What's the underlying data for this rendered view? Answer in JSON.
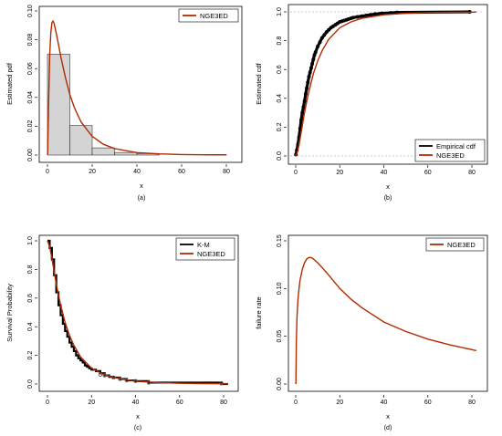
{
  "colors": {
    "model": "#b22a00",
    "empirical": "#000000",
    "hist_fill": "#d4d4d4",
    "ref_line": "#9a9a9a"
  },
  "chart_data": [
    {
      "id": "a",
      "type": "histogram",
      "caption": "(a)",
      "xlabel": "x",
      "ylabel": "Estimated pdf",
      "xlim": [
        0,
        80
      ],
      "ylim": [
        0,
        0.1
      ],
      "xticks": [
        0,
        20,
        40,
        60,
        80
      ],
      "yticks": [
        0.0,
        0.02,
        0.04,
        0.06,
        0.08,
        0.1
      ],
      "ytick_labels": [
        "0.00",
        "0.02",
        "0.04",
        "0.06",
        "0.08",
        "0.10"
      ],
      "legend": {
        "position": "top-right",
        "entries": [
          {
            "label": "NGE3ED",
            "color": "#b22a00"
          }
        ]
      },
      "bins": [
        {
          "x0": 0,
          "x1": 10,
          "density": 0.07
        },
        {
          "x0": 10,
          "x1": 20,
          "density": 0.0205
        },
        {
          "x0": 20,
          "x1": 30,
          "density": 0.005
        },
        {
          "x0": 30,
          "x1": 40,
          "density": 0.0018
        },
        {
          "x0": 40,
          "x1": 50,
          "density": 0.001
        },
        {
          "x0": 50,
          "x1": 60,
          "density": 0.0
        },
        {
          "x0": 60,
          "x1": 70,
          "density": 0.0
        },
        {
          "x0": 70,
          "x1": 80,
          "density": 0.0004
        }
      ],
      "series": [
        {
          "name": "NGE3ED",
          "color": "#b22a00",
          "x": [
            0.1,
            0.5,
            1,
            1.5,
            2,
            2.5,
            3,
            4,
            5,
            6,
            8,
            10,
            12,
            15,
            20,
            25,
            30,
            40,
            50,
            60,
            70,
            80
          ],
          "y": [
            0.0,
            0.035,
            0.07,
            0.085,
            0.092,
            0.093,
            0.091,
            0.084,
            0.076,
            0.068,
            0.054,
            0.042,
            0.033,
            0.023,
            0.013,
            0.0075,
            0.0045,
            0.0017,
            0.0008,
            0.0004,
            0.0002,
            0.0001
          ]
        }
      ]
    },
    {
      "id": "b",
      "type": "line",
      "caption": "(b)",
      "xlabel": "x",
      "ylabel": "Estimated cdf",
      "xlim": [
        0,
        80
      ],
      "ylim": [
        0,
        1
      ],
      "xticks": [
        0,
        20,
        40,
        60,
        80
      ],
      "yticks": [
        0.0,
        0.2,
        0.4,
        0.6,
        0.8,
        1.0
      ],
      "ytick_labels": [
        "0.0",
        "0.2",
        "0.4",
        "0.6",
        "0.8",
        "1.0"
      ],
      "ref_lines": [
        0,
        1
      ],
      "legend": {
        "position": "bottom-right",
        "entries": [
          {
            "label": "Empirical cdf",
            "color": "#000000"
          },
          {
            "label": "NGE3ED",
            "color": "#b22a00"
          }
        ]
      },
      "series": [
        {
          "name": "Empirical cdf",
          "color": "#000000",
          "x": [
            0.1,
            0.5,
            1,
            1.5,
            2,
            2.5,
            3,
            3.5,
            4,
            4.5,
            5,
            5.5,
            6,
            6.5,
            7,
            7.5,
            8,
            8.5,
            9,
            10,
            11,
            12,
            13,
            14,
            15,
            16,
            17,
            18,
            19,
            20,
            21,
            22,
            23,
            24,
            25,
            26,
            28,
            30,
            32,
            34,
            36,
            39,
            43,
            46,
            79
          ],
          "y": [
            0.01,
            0.04,
            0.08,
            0.13,
            0.19,
            0.25,
            0.3,
            0.34,
            0.38,
            0.43,
            0.47,
            0.51,
            0.55,
            0.58,
            0.61,
            0.64,
            0.67,
            0.7,
            0.72,
            0.76,
            0.79,
            0.82,
            0.84,
            0.86,
            0.875,
            0.89,
            0.9,
            0.91,
            0.92,
            0.93,
            0.935,
            0.94,
            0.945,
            0.95,
            0.955,
            0.96,
            0.965,
            0.97,
            0.975,
            0.98,
            0.985,
            0.99,
            0.993,
            0.996,
            1.0
          ]
        },
        {
          "name": "NGE3ED",
          "color": "#b22a00",
          "x": [
            0,
            1,
            2,
            3,
            4,
            5,
            6,
            8,
            10,
            12,
            15,
            20,
            25,
            30,
            40,
            50,
            60,
            70,
            80,
            82
          ],
          "y": [
            0.0,
            0.04,
            0.12,
            0.21,
            0.3,
            0.38,
            0.45,
            0.57,
            0.66,
            0.73,
            0.81,
            0.89,
            0.93,
            0.955,
            0.98,
            0.99,
            0.995,
            0.997,
            0.998,
            0.999
          ]
        }
      ]
    },
    {
      "id": "c",
      "type": "line",
      "caption": "(c)",
      "xlabel": "x",
      "ylabel": "Survival Probability",
      "xlim": [
        0,
        80
      ],
      "ylim": [
        0,
        1
      ],
      "xticks": [
        0,
        20,
        40,
        60,
        80
      ],
      "yticks": [
        0.0,
        0.2,
        0.4,
        0.6,
        0.8,
        1.0
      ],
      "ytick_labels": [
        "0.0",
        "0.2",
        "0.4",
        "0.6",
        "0.8",
        "1.0"
      ],
      "legend": {
        "position": "top-right",
        "entries": [
          {
            "label": "K-M",
            "color": "#000000"
          },
          {
            "label": "NGE3ED",
            "color": "#b22a00"
          }
        ]
      },
      "series": [
        {
          "name": "K-M",
          "color": "#000000",
          "x": [
            0,
            1,
            2,
            3,
            4,
            5,
            6,
            7,
            8,
            9,
            10,
            11,
            12,
            13,
            14,
            15,
            16,
            17,
            18,
            19,
            20,
            22,
            24,
            26,
            28,
            30,
            33,
            36,
            40,
            46,
            79,
            82
          ],
          "y": [
            1.0,
            0.95,
            0.87,
            0.76,
            0.64,
            0.55,
            0.48,
            0.42,
            0.37,
            0.33,
            0.29,
            0.26,
            0.23,
            0.2,
            0.18,
            0.165,
            0.15,
            0.13,
            0.12,
            0.11,
            0.1,
            0.09,
            0.075,
            0.06,
            0.05,
            0.045,
            0.035,
            0.025,
            0.02,
            0.01,
            0.0,
            0.0
          ]
        },
        {
          "name": "NGE3ED",
          "color": "#b22a00",
          "x": [
            0,
            1,
            2,
            3,
            4,
            5,
            6,
            8,
            10,
            12,
            15,
            20,
            25,
            30,
            40,
            50,
            60,
            70,
            80,
            82
          ],
          "y": [
            1.0,
            0.96,
            0.88,
            0.79,
            0.7,
            0.62,
            0.55,
            0.43,
            0.34,
            0.27,
            0.19,
            0.11,
            0.07,
            0.045,
            0.02,
            0.01,
            0.005,
            0.003,
            0.002,
            0.001
          ]
        }
      ],
      "markers": {
        "x": [
          24,
          26,
          30,
          33,
          36,
          40,
          46,
          79
        ],
        "y": [
          0.065,
          0.06,
          0.045,
          0.035,
          0.025,
          0.02,
          0.01,
          0.005
        ]
      }
    },
    {
      "id": "d",
      "type": "line",
      "caption": "(d)",
      "xlabel": "x",
      "ylabel": "failure rate",
      "xlim": [
        0,
        80
      ],
      "ylim": [
        0,
        0.15
      ],
      "xticks": [
        0,
        20,
        40,
        60,
        80
      ],
      "yticks": [
        0.0,
        0.05,
        0.1,
        0.15
      ],
      "ytick_labels": [
        "0.00",
        "0.05",
        "0.10",
        "0.15"
      ],
      "legend": {
        "position": "top-right",
        "entries": [
          {
            "label": "NGE3ED",
            "color": "#b22a00"
          }
        ]
      },
      "series": [
        {
          "name": "NGE3ED",
          "color": "#b22a00",
          "x": [
            0.1,
            0.3,
            0.6,
            1,
            1.5,
            2,
            3,
            4,
            5,
            6,
            7,
            8,
            10,
            12,
            15,
            20,
            25,
            30,
            40,
            50,
            60,
            70,
            80,
            82
          ],
          "y": [
            0.0,
            0.045,
            0.07,
            0.088,
            0.1,
            0.109,
            0.12,
            0.127,
            0.131,
            0.1325,
            0.1325,
            0.131,
            0.127,
            0.122,
            0.114,
            0.1,
            0.089,
            0.08,
            0.065,
            0.055,
            0.047,
            0.041,
            0.036,
            0.035
          ]
        }
      ]
    }
  ]
}
